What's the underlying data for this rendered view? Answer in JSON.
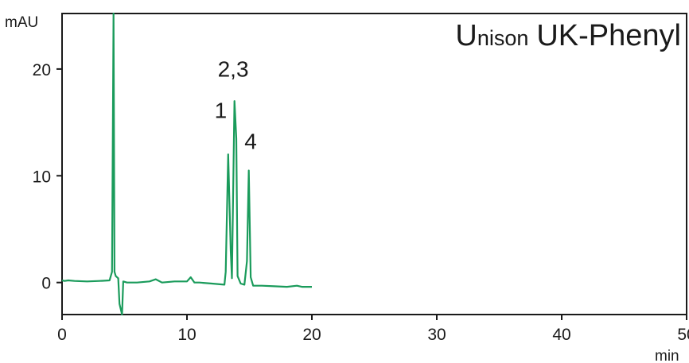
{
  "chart_data": {
    "type": "line",
    "title": "",
    "brand": {
      "initial": "U",
      "rest": "nison",
      "model": "UK-Phenyl"
    },
    "xlabel": "min",
    "ylabel": "mAU",
    "xlim": [
      0,
      50
    ],
    "ylim": [
      -3,
      25.2
    ],
    "xticks": [
      0,
      10,
      20,
      30,
      40,
      50
    ],
    "yticks": [
      0,
      10,
      20
    ],
    "grid": false,
    "series": [
      {
        "color": "#1a9b5b",
        "x": [
          0,
          0.2,
          0.5,
          1.0,
          2.0,
          3.0,
          3.8,
          4.0,
          4.12,
          4.2,
          4.3,
          4.5,
          4.6,
          4.8,
          4.9,
          5.2,
          6.0,
          7.0,
          7.5,
          8.0,
          9.0,
          10.0,
          10.3,
          10.6,
          11.0,
          12.0,
          13.0,
          13.1,
          13.3,
          13.5,
          13.6,
          13.8,
          13.95,
          14.05,
          14.3,
          14.6,
          14.8,
          14.95,
          15.1,
          15.3,
          16.0,
          17.0,
          18.0,
          18.8,
          19.2,
          20.0
        ],
        "y": [
          0.2,
          0.15,
          0.2,
          0.15,
          0.1,
          0.15,
          0.2,
          1.0,
          25.2,
          1.0,
          0.6,
          0.4,
          -2.0,
          -3.0,
          0.1,
          0.0,
          0.0,
          0.1,
          0.3,
          0.0,
          0.1,
          0.1,
          0.5,
          0.0,
          0.0,
          -0.1,
          -0.2,
          1.0,
          12.0,
          3.0,
          0.4,
          17.0,
          13.5,
          0.6,
          -0.1,
          -0.2,
          2.0,
          10.5,
          0.5,
          -0.3,
          -0.3,
          -0.35,
          -0.4,
          -0.3,
          -0.4,
          -0.4
        ]
      }
    ],
    "annotations": [
      {
        "text": "1",
        "x": 12.7,
        "y": 15.4
      },
      {
        "text": "2,3",
        "x": 13.7,
        "y": 19.3
      },
      {
        "text": "4",
        "x": 15.1,
        "y": 12.5
      }
    ]
  }
}
